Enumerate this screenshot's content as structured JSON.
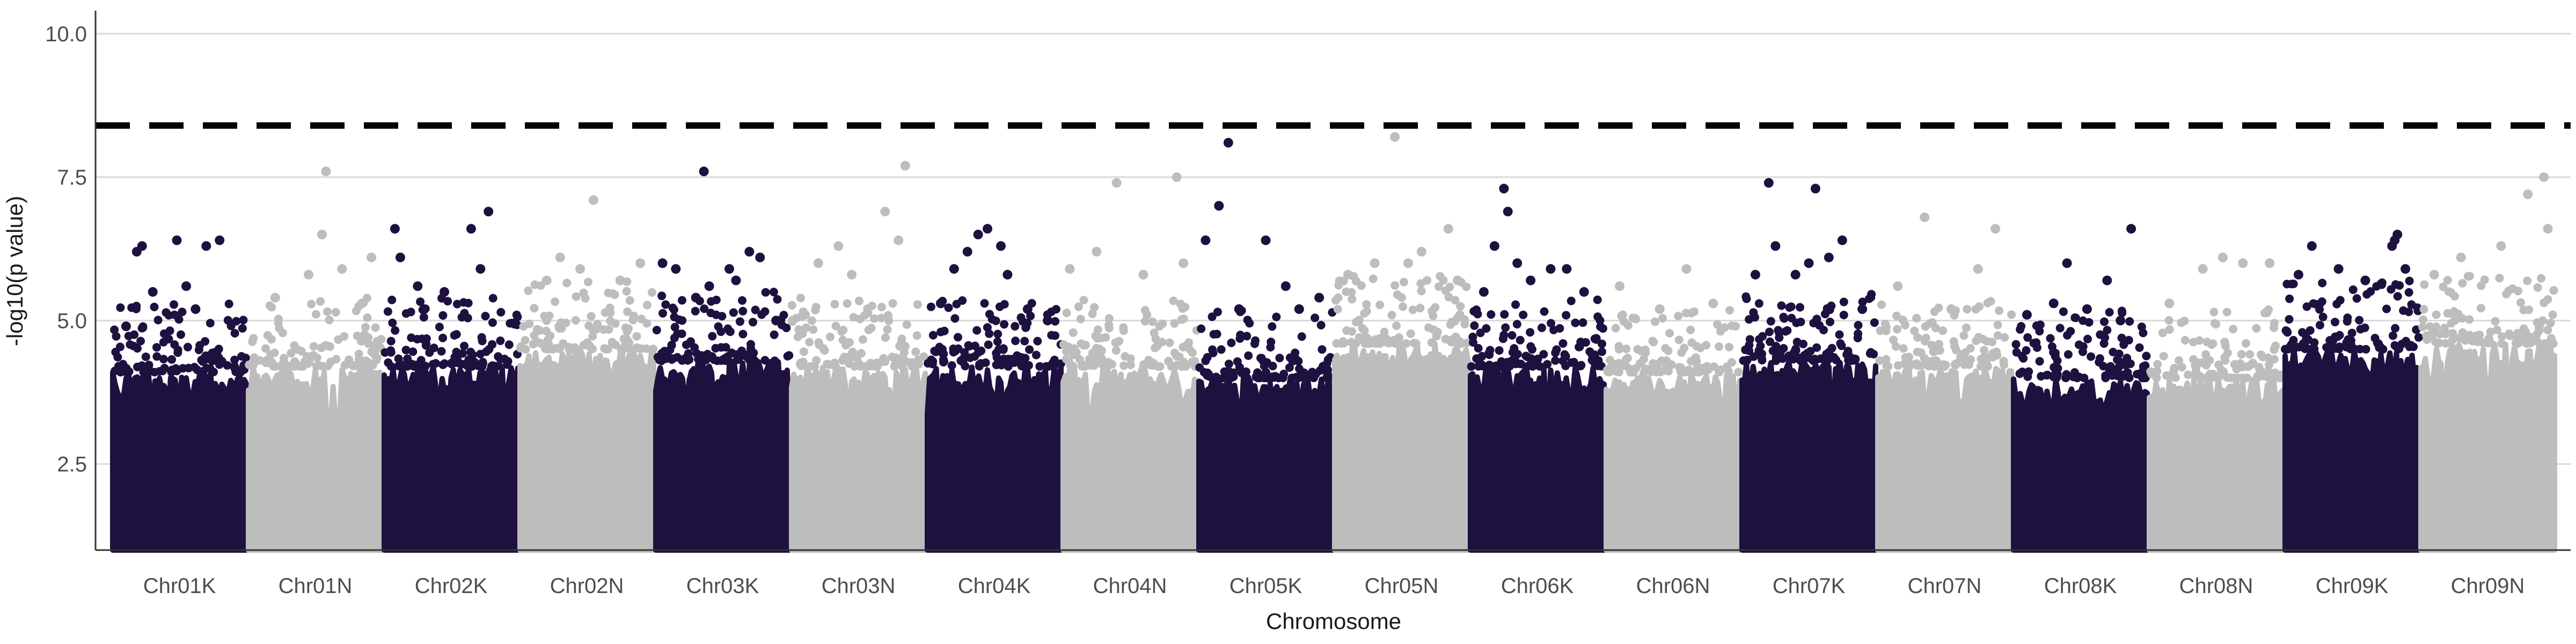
{
  "chart_data": {
    "type": "scatter",
    "subtype": "manhattan",
    "title": "",
    "xlabel": "Chromosome",
    "ylabel": "-log10(p value)",
    "ylim": [
      1.0,
      10.4
    ],
    "yticks": [
      2.5,
      5.0,
      7.5,
      10.0
    ],
    "grid": "horizontal major gridlines",
    "legend": "none",
    "threshold": {
      "value": 8.4,
      "style": "dashed",
      "color": "#000000"
    },
    "colors": {
      "dark": "#1e103f",
      "light": "#bdbdbd",
      "grid": "#d9d9d9",
      "axis": "#333333"
    },
    "categories": [
      "Chr01K",
      "Chr01N",
      "Chr02K",
      "Chr02N",
      "Chr03K",
      "Chr03N",
      "Chr04K",
      "Chr04N",
      "Chr05K",
      "Chr05N",
      "Chr06K",
      "Chr06N",
      "Chr07K",
      "Chr07N",
      "Chr08K",
      "Chr08N",
      "Chr09K",
      "Chr09N"
    ],
    "series": [
      {
        "category": "Chr01K",
        "color": "dark",
        "bulk_max": 4.1,
        "outliers": [
          [
            0.1,
            4.9
          ],
          [
            0.18,
            6.2
          ],
          [
            0.22,
            6.3
          ],
          [
            0.3,
            5.5
          ],
          [
            0.48,
            6.4
          ],
          [
            0.55,
            5.6
          ],
          [
            0.7,
            6.3
          ],
          [
            0.8,
            6.4
          ],
          [
            0.62,
            5.2
          ]
        ]
      },
      {
        "category": "Chr01N",
        "color": "light",
        "bulk_max": 4.2,
        "outliers": [
          [
            0.2,
            5.4
          ],
          [
            0.45,
            5.8
          ],
          [
            0.55,
            6.5
          ],
          [
            0.58,
            7.6
          ],
          [
            0.7,
            5.9
          ],
          [
            0.85,
            5.3
          ],
          [
            0.92,
            6.1
          ]
        ]
      },
      {
        "category": "Chr02K",
        "color": "dark",
        "bulk_max": 4.2,
        "outliers": [
          [
            0.08,
            6.6
          ],
          [
            0.12,
            6.1
          ],
          [
            0.25,
            5.6
          ],
          [
            0.45,
            5.5
          ],
          [
            0.65,
            6.6
          ],
          [
            0.72,
            5.9
          ],
          [
            0.78,
            6.9
          ],
          [
            0.3,
            5.2
          ]
        ]
      },
      {
        "category": "Chr02N",
        "color": "light",
        "bulk_max": 4.5,
        "outliers": [
          [
            0.2,
            5.7
          ],
          [
            0.3,
            6.1
          ],
          [
            0.45,
            5.9
          ],
          [
            0.55,
            7.1
          ],
          [
            0.75,
            5.7
          ],
          [
            0.9,
            6.0
          ]
        ]
      },
      {
        "category": "Chr03K",
        "color": "dark",
        "bulk_max": 4.3,
        "outliers": [
          [
            0.05,
            6.0
          ],
          [
            0.15,
            5.9
          ],
          [
            0.3,
            5.4
          ],
          [
            0.4,
            5.6
          ],
          [
            0.36,
            7.6
          ],
          [
            0.55,
            5.9
          ],
          [
            0.6,
            5.7
          ],
          [
            0.7,
            6.2
          ],
          [
            0.78,
            6.1
          ],
          [
            0.9,
            5.0
          ]
        ]
      },
      {
        "category": "Chr03N",
        "color": "light",
        "bulk_max": 4.2,
        "outliers": [
          [
            0.1,
            5.1
          ],
          [
            0.2,
            6.0
          ],
          [
            0.35,
            6.3
          ],
          [
            0.45,
            5.8
          ],
          [
            0.7,
            6.9
          ],
          [
            0.85,
            7.7
          ],
          [
            0.8,
            6.4
          ]
        ]
      },
      {
        "category": "Chr04K",
        "color": "dark",
        "bulk_max": 4.2,
        "outliers": [
          [
            0.1,
            5.3
          ],
          [
            0.2,
            5.9
          ],
          [
            0.3,
            6.2
          ],
          [
            0.38,
            6.5
          ],
          [
            0.45,
            6.6
          ],
          [
            0.55,
            6.3
          ],
          [
            0.6,
            5.8
          ],
          [
            0.75,
            5.2
          ],
          [
            0.9,
            5.0
          ]
        ]
      },
      {
        "category": "Chr04N",
        "color": "light",
        "bulk_max": 4.2,
        "outliers": [
          [
            0.05,
            5.9
          ],
          [
            0.25,
            6.2
          ],
          [
            0.4,
            7.4
          ],
          [
            0.6,
            5.8
          ],
          [
            0.85,
            7.5
          ],
          [
            0.9,
            6.0
          ]
        ]
      },
      {
        "category": "Chr05K",
        "color": "dark",
        "bulk_max": 4.0,
        "outliers": [
          [
            0.05,
            6.4
          ],
          [
            0.15,
            7.0
          ],
          [
            0.22,
            8.1
          ],
          [
            0.3,
            5.2
          ],
          [
            0.5,
            6.4
          ],
          [
            0.65,
            5.6
          ],
          [
            0.75,
            5.2
          ],
          [
            0.9,
            5.4
          ]
        ]
      },
      {
        "category": "Chr05N",
        "color": "light",
        "bulk_max": 4.6,
        "outliers": [
          [
            0.1,
            5.8
          ],
          [
            0.3,
            6.0
          ],
          [
            0.45,
            8.2
          ],
          [
            0.55,
            6.0
          ],
          [
            0.65,
            6.2
          ],
          [
            0.85,
            6.6
          ],
          [
            0.92,
            5.7
          ]
        ]
      },
      {
        "category": "Chr06K",
        "color": "dark",
        "bulk_max": 4.2,
        "outliers": [
          [
            0.1,
            5.5
          ],
          [
            0.18,
            6.3
          ],
          [
            0.25,
            7.3
          ],
          [
            0.28,
            6.9
          ],
          [
            0.35,
            6.0
          ],
          [
            0.45,
            5.7
          ],
          [
            0.6,
            5.9
          ],
          [
            0.72,
            5.9
          ],
          [
            0.85,
            5.5
          ]
        ]
      },
      {
        "category": "Chr06N",
        "color": "light",
        "bulk_max": 4.1,
        "outliers": [
          [
            0.1,
            5.6
          ],
          [
            0.4,
            5.2
          ],
          [
            0.6,
            5.9
          ],
          [
            0.8,
            5.3
          ]
        ]
      },
      {
        "category": "Chr07K",
        "color": "dark",
        "bulk_max": 4.3,
        "outliers": [
          [
            0.1,
            5.8
          ],
          [
            0.2,
            7.4
          ],
          [
            0.25,
            6.3
          ],
          [
            0.4,
            5.8
          ],
          [
            0.5,
            6.0
          ],
          [
            0.55,
            7.3
          ],
          [
            0.65,
            6.1
          ],
          [
            0.75,
            6.4
          ],
          [
            0.9,
            5.2
          ]
        ]
      },
      {
        "category": "Chr07N",
        "color": "light",
        "bulk_max": 4.2,
        "outliers": [
          [
            0.15,
            5.6
          ],
          [
            0.35,
            6.8
          ],
          [
            0.55,
            5.2
          ],
          [
            0.75,
            5.9
          ],
          [
            0.88,
            6.6
          ]
        ]
      },
      {
        "category": "Chr08K",
        "color": "dark",
        "bulk_max": 4.0,
        "outliers": [
          [
            0.1,
            5.1
          ],
          [
            0.3,
            5.3
          ],
          [
            0.4,
            6.0
          ],
          [
            0.55,
            5.2
          ],
          [
            0.7,
            5.7
          ],
          [
            0.88,
            6.6
          ],
          [
            0.8,
            5.0
          ]
        ]
      },
      {
        "category": "Chr08N",
        "color": "light",
        "bulk_max": 4.0,
        "outliers": [
          [
            0.15,
            5.3
          ],
          [
            0.4,
            5.9
          ],
          [
            0.55,
            6.1
          ],
          [
            0.7,
            6.0
          ],
          [
            0.9,
            6.0
          ]
        ]
      },
      {
        "category": "Chr09K",
        "color": "dark",
        "bulk_max": 4.5,
        "outliers": [
          [
            0.1,
            5.8
          ],
          [
            0.2,
            6.3
          ],
          [
            0.4,
            5.9
          ],
          [
            0.6,
            5.7
          ],
          [
            0.8,
            6.3
          ],
          [
            0.82,
            6.4
          ],
          [
            0.84,
            6.5
          ],
          [
            0.9,
            5.9
          ]
        ]
      },
      {
        "category": "Chr09N",
        "color": "light",
        "bulk_max": 4.6,
        "outliers": [
          [
            0.1,
            5.8
          ],
          [
            0.3,
            6.1
          ],
          [
            0.6,
            6.3
          ],
          [
            0.8,
            7.2
          ],
          [
            0.92,
            7.5
          ],
          [
            0.95,
            6.6
          ]
        ]
      }
    ]
  }
}
